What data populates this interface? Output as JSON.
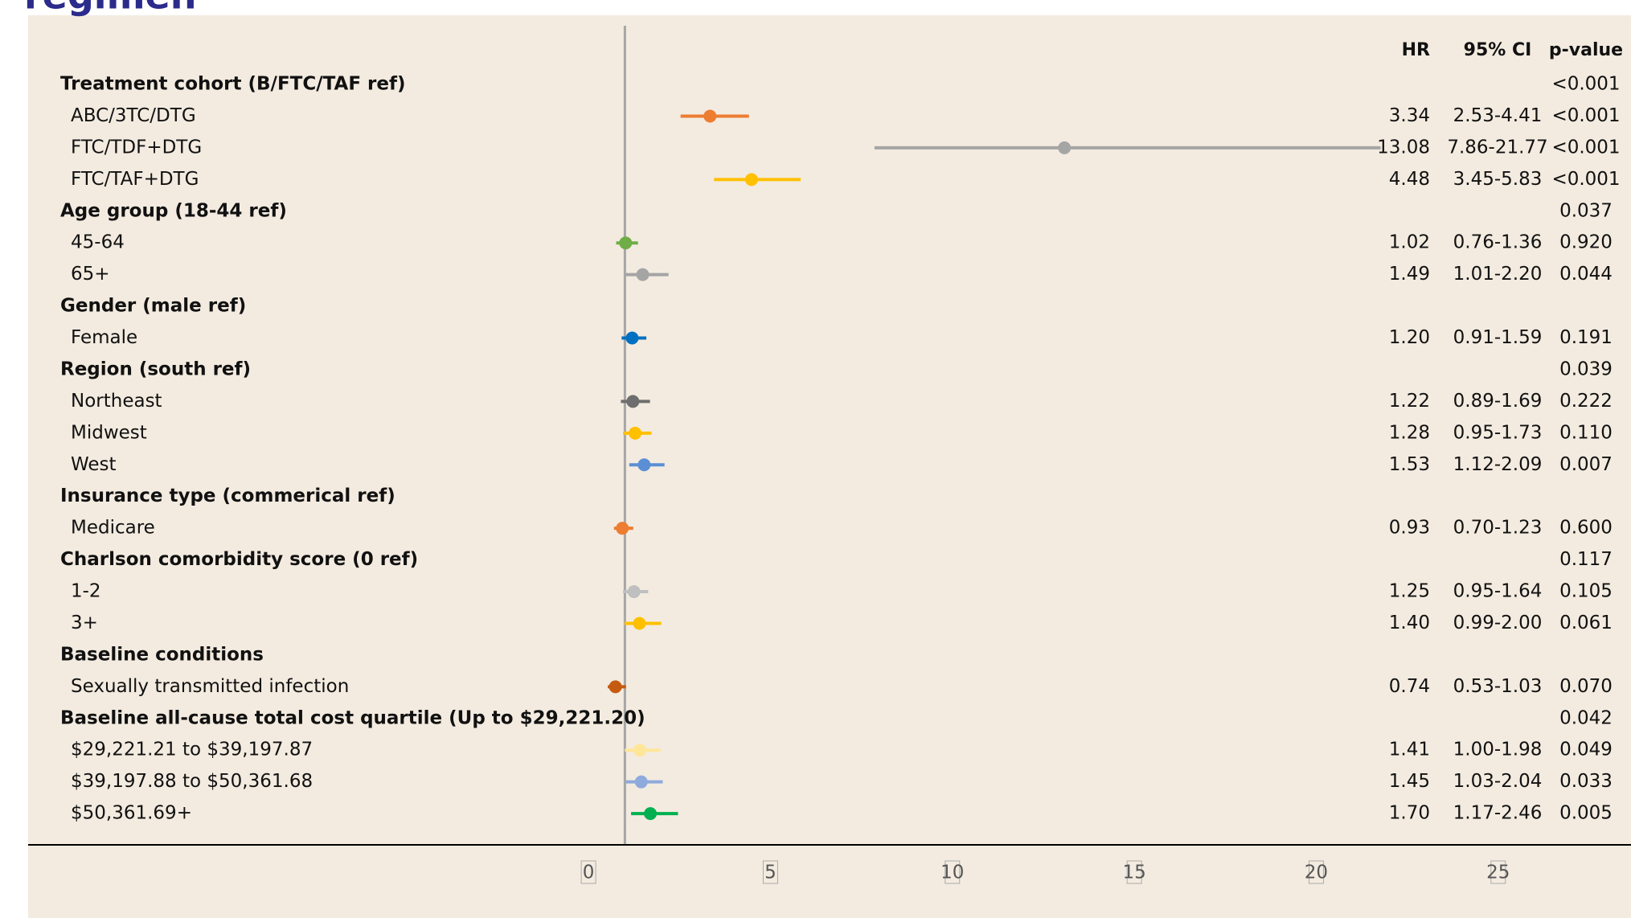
{
  "chart_data": {
    "type": "forest",
    "title": "regimen",
    "column_headers": [
      "HR",
      "95% CI",
      "p-value"
    ],
    "categories": [
      "Treatment cohort (B/FTC/TAF ref)",
      "ABC/3TC/DTG",
      "FTC/TDF+DTG",
      "FTC/TAF+DTG",
      "Age group (18-44 ref)",
      "45-64",
      "65+",
      "Gender (male ref)",
      "Female",
      "Region (south ref)",
      "Northeast",
      "Midwest",
      "West",
      "Insurance type (commerical ref)",
      "Medicare",
      "Charlson comorbidity score (0 ref)",
      "1-2",
      "3+",
      "Baseline conditions",
      "Sexually transmitted infection",
      "Baseline all-cause total cost quartile  (Up to $29,221.20)",
      "$29,221.21 to $39,197.87",
      "$39,197.88 to $50,361.68",
      "$50,361.69+"
    ],
    "values": [
      null,
      3.34,
      13.08,
      4.48,
      null,
      1.02,
      1.49,
      null,
      1.2,
      null,
      1.22,
      1.28,
      1.53,
      null,
      0.93,
      null,
      1.25,
      1.4,
      null,
      0.74,
      null,
      1.41,
      1.45,
      1.7
    ],
    "value_labels": [
      null,
      "3.34",
      "13.08",
      "4.48",
      null,
      "1.02",
      "1.49",
      null,
      "1.20",
      null,
      "1.22",
      "1.28",
      "1.53",
      null,
      "0.93",
      null,
      "1.25",
      "1.40",
      null,
      "0.74",
      null,
      "1.41",
      "1.45",
      "1.70"
    ],
    "ci_low": [
      null,
      2.53,
      7.86,
      3.45,
      null,
      0.76,
      1.01,
      null,
      0.91,
      null,
      0.89,
      0.95,
      1.12,
      null,
      0.7,
      null,
      0.95,
      0.99,
      null,
      0.53,
      null,
      1.0,
      1.03,
      1.17
    ],
    "ci_high": [
      null,
      4.41,
      21.77,
      5.83,
      null,
      1.36,
      2.2,
      null,
      1.59,
      null,
      1.69,
      1.73,
      2.09,
      null,
      1.23,
      null,
      1.64,
      2.0,
      null,
      1.03,
      null,
      1.98,
      2.04,
      2.46
    ],
    "ci_labels": [
      null,
      "2.53-4.41",
      "7.86-21.77",
      "3.45-5.83",
      null,
      "0.76-1.36",
      "1.01-2.20",
      null,
      "0.91-1.59",
      null,
      "0.89-1.69",
      "0.95-1.73",
      "1.12-2.09",
      null,
      "0.70-1.23",
      null,
      "0.95-1.64",
      "0.99-2.00",
      null,
      "0.53-1.03",
      null,
      "1.00-1.98",
      "1.03-2.04",
      "1.17-2.46"
    ],
    "p_values": [
      "<0.001",
      "<0.001",
      "<0.001",
      "<0.001",
      "0.037",
      "0.920",
      "0.044",
      null,
      "0.191",
      "0.039",
      "0.222",
      "0.110",
      "0.007",
      null,
      "0.600",
      "0.117",
      "0.105",
      "0.061",
      null,
      "0.070",
      "0.042",
      "0.049",
      "0.033",
      "0.005"
    ],
    "colors": [
      null,
      "#ed7d31",
      "#a5a5a5",
      "#ffc000",
      null,
      "#70ad47",
      "#a5a5a5",
      null,
      "#0070c0",
      null,
      "#6e6e6e",
      "#ffc000",
      "#5b8fd5",
      null,
      "#ed7d31",
      null,
      "#bfbfbf",
      "#ffc000",
      null,
      "#c55a11",
      null,
      "#ffe699",
      "#8faadc",
      "#00b050"
    ],
    "reference_line": 1,
    "xlim": [
      -15.4,
      28.65
    ],
    "xticks": [
      0,
      5,
      10,
      15,
      20,
      25
    ]
  }
}
